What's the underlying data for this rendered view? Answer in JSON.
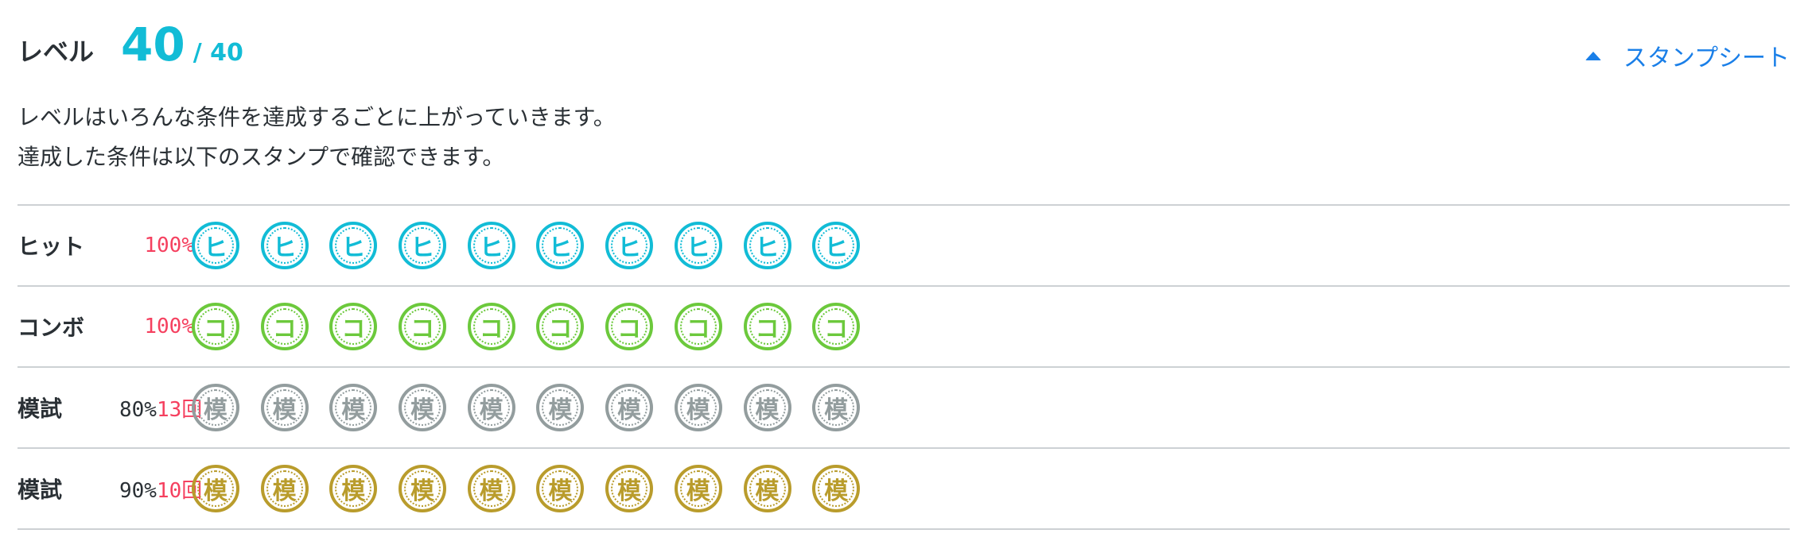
{
  "header": {
    "title": "レベル",
    "level": "40",
    "max": "/ 40"
  },
  "stamp_sheet_link": {
    "label": "スタンプシート",
    "icon": "triangle-up-icon"
  },
  "description": [
    "レベルはいろんな条件を達成するごとに上がっていきます。",
    "達成した条件は以下のスタンプで確認できます。"
  ],
  "rows": [
    {
      "label": "ヒット",
      "pct": "",
      "count": "100%",
      "stamp_char": "ヒ",
      "color": "#12bcd6",
      "stamps": 10
    },
    {
      "label": "コンボ",
      "pct": "",
      "count": "100%",
      "stamp_char": "コ",
      "color": "#6cc93c",
      "stamps": 10
    },
    {
      "label": "模試",
      "pct": "80%",
      "count": "13回",
      "stamp_char": "模",
      "color": "#939d9e",
      "stamps": 10
    },
    {
      "label": "模試",
      "pct": "90%",
      "count": "10回",
      "stamp_char": "模",
      "color": "#b99c2c",
      "stamps": 10
    }
  ]
}
